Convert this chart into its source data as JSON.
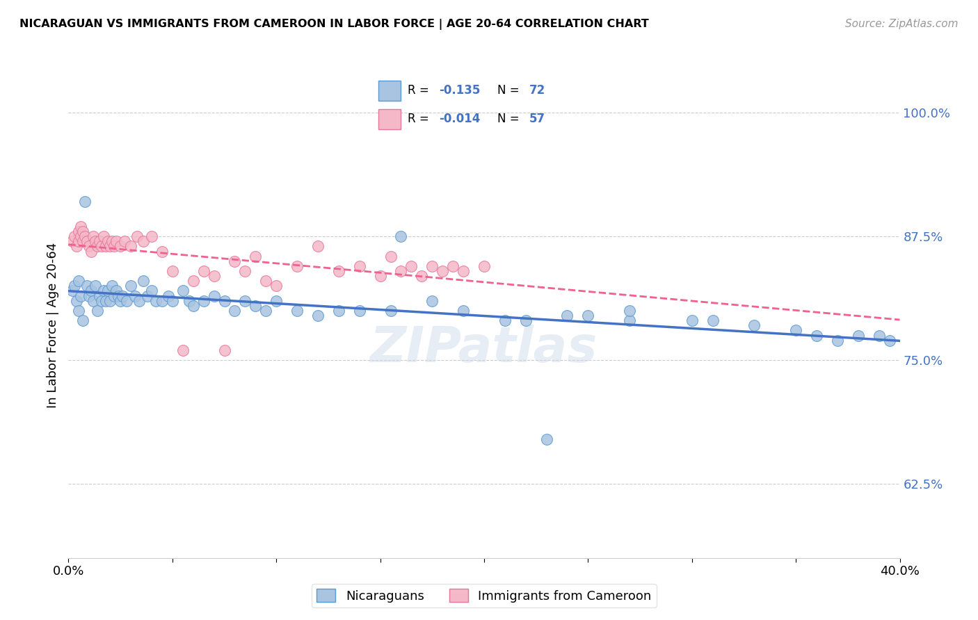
{
  "title": "NICARAGUAN VS IMMIGRANTS FROM CAMEROON IN LABOR FORCE | AGE 20-64 CORRELATION CHART",
  "source": "Source: ZipAtlas.com",
  "ylabel": "In Labor Force | Age 20-64",
  "xmin": 0.0,
  "xmax": 0.4,
  "ymin": 0.55,
  "ymax": 1.02,
  "yticks": [
    1.0,
    0.875,
    0.75,
    0.625
  ],
  "ytick_labels": [
    "100.0%",
    "87.5%",
    "75.0%",
    "62.5%"
  ],
  "xticks": [
    0.0,
    0.05,
    0.1,
    0.15,
    0.2,
    0.25,
    0.3,
    0.35,
    0.4
  ],
  "xtick_labels": [
    "0.0%",
    "",
    "",
    "",
    "",
    "",
    "",
    "",
    "40.0%"
  ],
  "blue_R": -0.135,
  "blue_N": 72,
  "pink_R": -0.014,
  "pink_N": 57,
  "blue_color": "#a8c4e0",
  "blue_edge": "#5b9bd5",
  "pink_color": "#f4b8c8",
  "pink_edge": "#e87799",
  "blue_line_color": "#4472c4",
  "pink_line_color": "#f06090",
  "blue_scatter_x": [
    0.002,
    0.003,
    0.004,
    0.005,
    0.005,
    0.006,
    0.007,
    0.008,
    0.009,
    0.01,
    0.011,
    0.012,
    0.013,
    0.014,
    0.015,
    0.016,
    0.017,
    0.018,
    0.019,
    0.02,
    0.021,
    0.022,
    0.023,
    0.024,
    0.025,
    0.026,
    0.028,
    0.03,
    0.032,
    0.034,
    0.036,
    0.038,
    0.04,
    0.042,
    0.045,
    0.048,
    0.05,
    0.055,
    0.058,
    0.06,
    0.065,
    0.07,
    0.075,
    0.08,
    0.085,
    0.09,
    0.095,
    0.1,
    0.11,
    0.12,
    0.13,
    0.14,
    0.155,
    0.16,
    0.175,
    0.19,
    0.21,
    0.23,
    0.25,
    0.27,
    0.22,
    0.24,
    0.27,
    0.3,
    0.31,
    0.33,
    0.35,
    0.36,
    0.37,
    0.38,
    0.39,
    0.395
  ],
  "blue_scatter_y": [
    0.82,
    0.825,
    0.81,
    0.8,
    0.83,
    0.815,
    0.79,
    0.91,
    0.825,
    0.815,
    0.82,
    0.81,
    0.825,
    0.8,
    0.815,
    0.81,
    0.82,
    0.81,
    0.82,
    0.81,
    0.825,
    0.815,
    0.82,
    0.815,
    0.81,
    0.815,
    0.81,
    0.825,
    0.815,
    0.81,
    0.83,
    0.815,
    0.82,
    0.81,
    0.81,
    0.815,
    0.81,
    0.82,
    0.81,
    0.805,
    0.81,
    0.815,
    0.81,
    0.8,
    0.81,
    0.805,
    0.8,
    0.81,
    0.8,
    0.795,
    0.8,
    0.8,
    0.8,
    0.875,
    0.81,
    0.8,
    0.79,
    0.67,
    0.795,
    0.79,
    0.79,
    0.795,
    0.8,
    0.79,
    0.79,
    0.785,
    0.78,
    0.775,
    0.77,
    0.775,
    0.775,
    0.77
  ],
  "pink_scatter_x": [
    0.002,
    0.003,
    0.004,
    0.005,
    0.005,
    0.006,
    0.006,
    0.007,
    0.007,
    0.008,
    0.009,
    0.01,
    0.011,
    0.012,
    0.013,
    0.014,
    0.015,
    0.016,
    0.017,
    0.018,
    0.019,
    0.02,
    0.021,
    0.022,
    0.023,
    0.025,
    0.027,
    0.03,
    0.033,
    0.036,
    0.04,
    0.045,
    0.05,
    0.055,
    0.06,
    0.065,
    0.07,
    0.075,
    0.08,
    0.085,
    0.09,
    0.095,
    0.1,
    0.11,
    0.12,
    0.13,
    0.14,
    0.15,
    0.155,
    0.16,
    0.165,
    0.17,
    0.175,
    0.18,
    0.185,
    0.19,
    0.2
  ],
  "pink_scatter_y": [
    0.87,
    0.875,
    0.865,
    0.88,
    0.87,
    0.885,
    0.875,
    0.88,
    0.87,
    0.875,
    0.87,
    0.865,
    0.86,
    0.875,
    0.87,
    0.865,
    0.87,
    0.865,
    0.875,
    0.865,
    0.87,
    0.865,
    0.87,
    0.865,
    0.87,
    0.865,
    0.87,
    0.865,
    0.875,
    0.87,
    0.875,
    0.86,
    0.84,
    0.76,
    0.83,
    0.84,
    0.835,
    0.76,
    0.85,
    0.84,
    0.855,
    0.83,
    0.825,
    0.845,
    0.865,
    0.84,
    0.845,
    0.835,
    0.855,
    0.84,
    0.845,
    0.835,
    0.845,
    0.84,
    0.845,
    0.84,
    0.845
  ]
}
